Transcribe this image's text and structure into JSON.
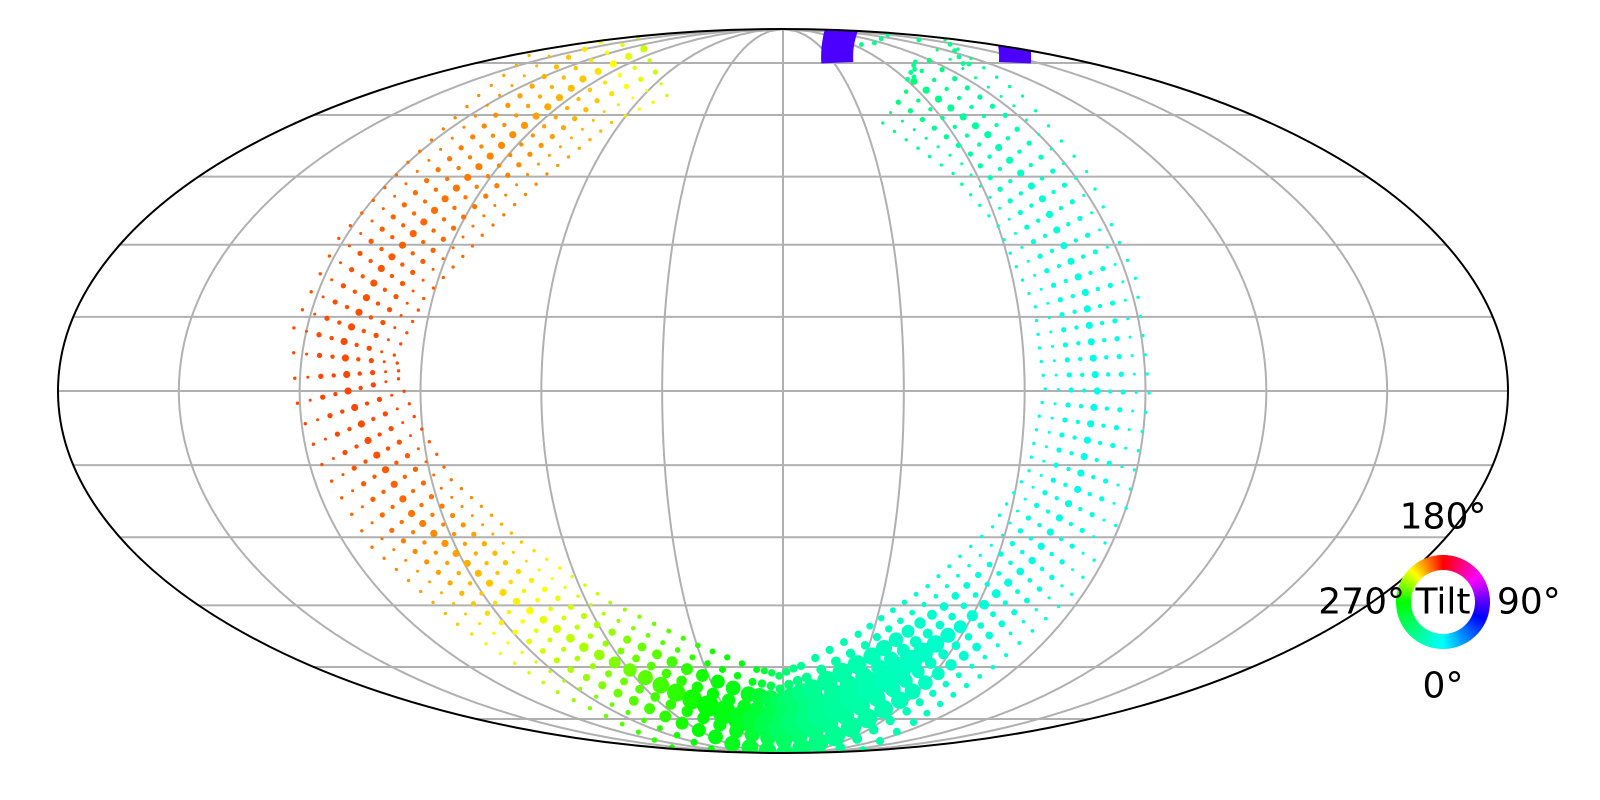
{
  "chart_data": {
    "type": "scatter",
    "projection": "mollweide",
    "grid": true,
    "title": "",
    "xlabel": "",
    "ylabel": "",
    "xlim": [
      -180,
      180
    ],
    "ylim": [
      -90,
      90
    ],
    "meridians_deg": [
      -150,
      -120,
      -90,
      -60,
      -30,
      0,
      30,
      60,
      90,
      120,
      150
    ],
    "parallels_deg": [
      -75,
      -60,
      -45,
      -30,
      -15,
      0,
      15,
      30,
      45,
      60,
      75
    ],
    "colors": {
      "frame": "#000000",
      "grid": "#b0b0b0",
      "annulus": "#4b00ff"
    },
    "band": {
      "description_of_data": "scatter points along a U-shaped band; color encodes tilt angle, size encodes weight",
      "centerline": [
        {
          "lon": -106,
          "lat": 80,
          "tilt": 235
        },
        {
          "lon": -98,
          "lat": 70,
          "tilt": 215
        },
        {
          "lon": -95,
          "lat": 55,
          "tilt": 205
        },
        {
          "lon": -99,
          "lat": 40,
          "tilt": 200
        },
        {
          "lon": -106,
          "lat": 25,
          "tilt": 195
        },
        {
          "lon": -110,
          "lat": 10,
          "tilt": 193
        },
        {
          "lon": -108,
          "lat": 0,
          "tilt": 192
        },
        {
          "lon": -104,
          "lat": -10,
          "tilt": 193
        },
        {
          "lon": -98,
          "lat": -25,
          "tilt": 200
        },
        {
          "lon": -86,
          "lat": -40,
          "tilt": 215
        },
        {
          "lon": -70,
          "lat": -55,
          "tilt": 240
        },
        {
          "lon": -48,
          "lat": -67,
          "tilt": 262
        },
        {
          "lon": -25,
          "lat": -75,
          "tilt": 280
        },
        {
          "lon": 0,
          "lat": -78,
          "tilt": 305
        },
        {
          "lon": 22,
          "lat": -73,
          "tilt": 322
        },
        {
          "lon": 42,
          "lat": -63,
          "tilt": 335
        },
        {
          "lon": 58,
          "lat": -50,
          "tilt": 345
        },
        {
          "lon": 70,
          "lat": -35,
          "tilt": 350
        },
        {
          "lon": 76,
          "lat": -20,
          "tilt": 352
        },
        {
          "lon": 78,
          "lat": 0,
          "tilt": 352
        },
        {
          "lon": 78,
          "lat": 20,
          "tilt": 351
        },
        {
          "lon": 76,
          "lat": 40,
          "tilt": 345
        },
        {
          "lon": 72,
          "lat": 55,
          "tilt": 330
        },
        {
          "lon": 62,
          "lat": 72,
          "tilt": 310
        }
      ],
      "size_peak_points": [
        {
          "lon": 12,
          "lat": -76,
          "weight": 1.0
        },
        {
          "lon": 40,
          "lat": -64,
          "weight": 0.95
        },
        {
          "lon": -45,
          "lat": -68,
          "weight": 0.55
        }
      ]
    },
    "annulus": {
      "center": {
        "lon": 92,
        "lat": 77
      },
      "tilt": 270,
      "open_side": "top"
    },
    "legend": {
      "type": "color-wheel",
      "title": "Tilt",
      "placement": "bottom-right",
      "labels": {
        "top": "180°",
        "right": "90°",
        "bottom": "0°",
        "left": "270°"
      }
    }
  }
}
